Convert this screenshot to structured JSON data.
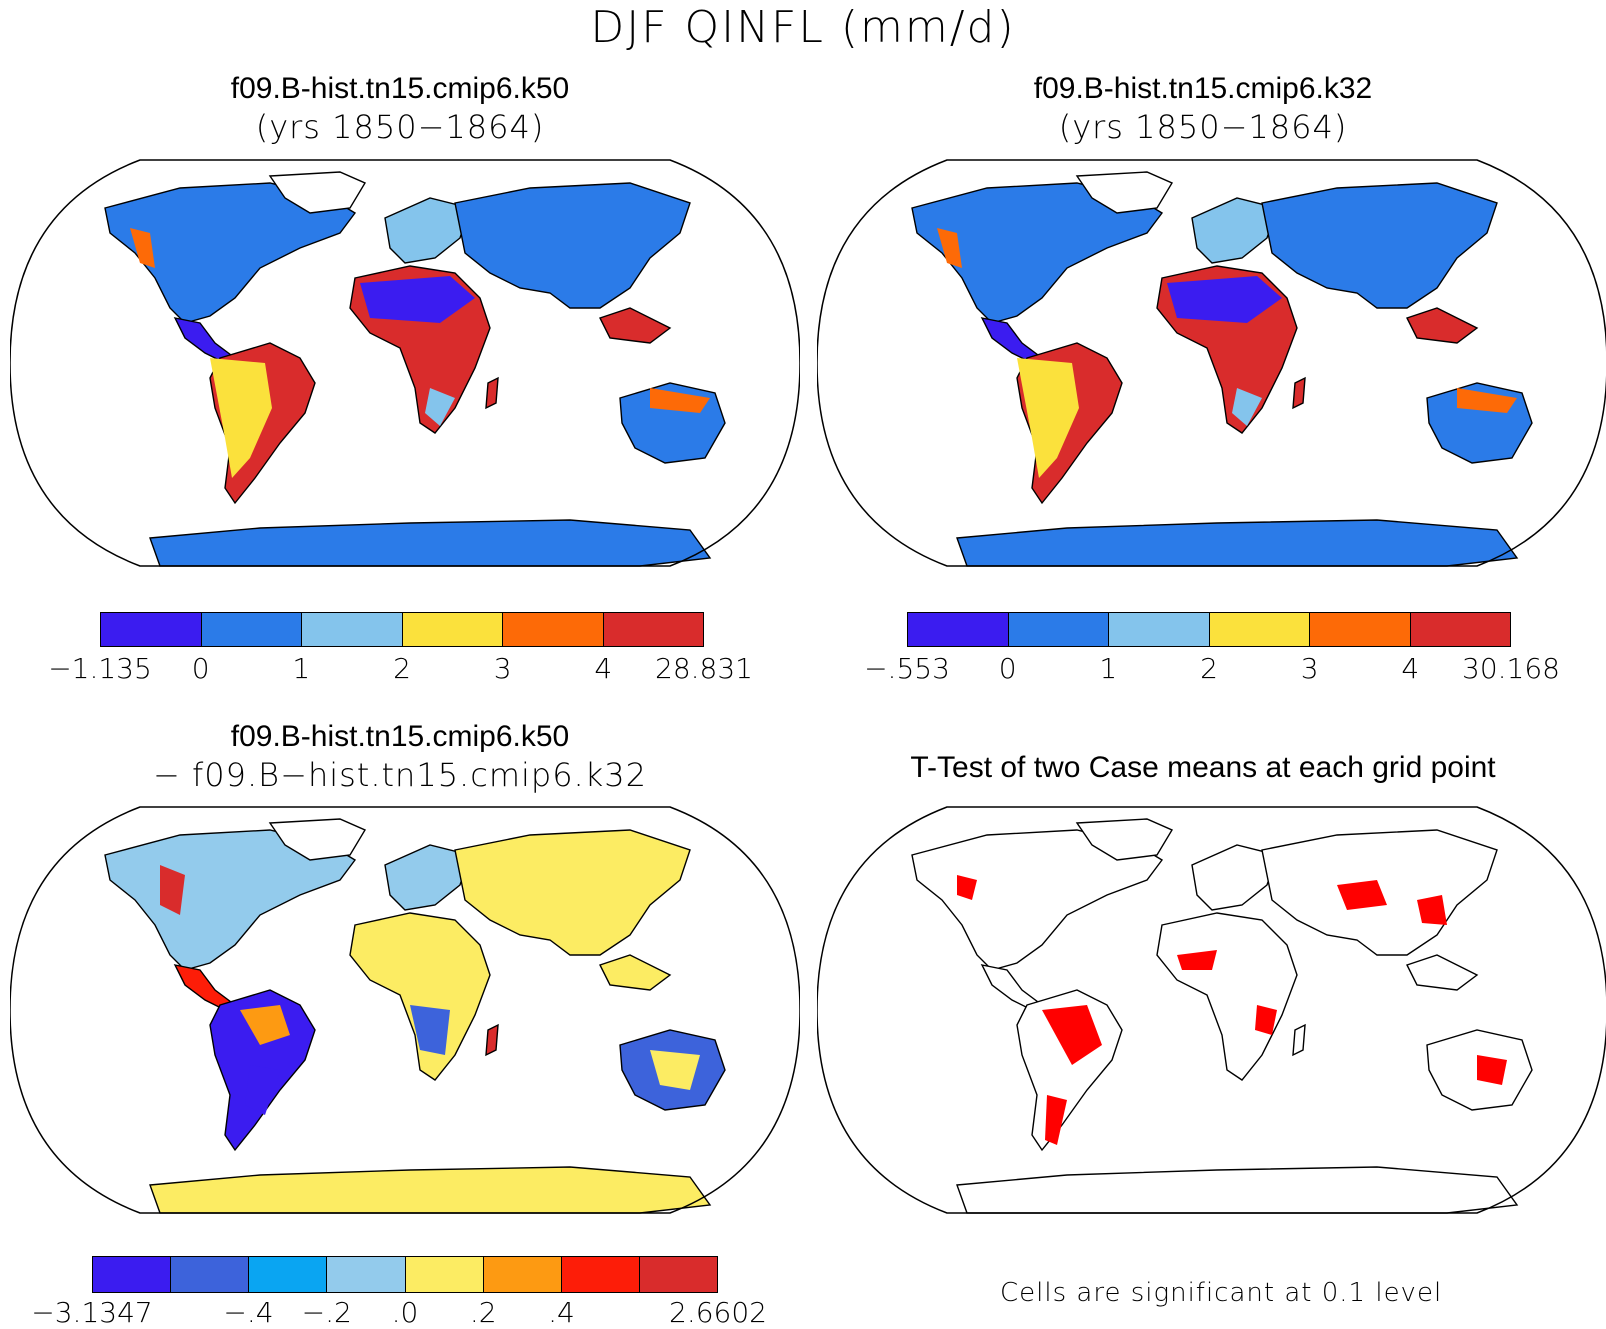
{
  "figure_title": "DJF QINFL (mm/d)",
  "panels": [
    {
      "title_line1": "f09.B-hist.tn15.cmip6.k50",
      "title_line2": "(yrs 1850−1864)"
    },
    {
      "title_line1": "f09.B-hist.tn15.cmip6.k32",
      "title_line2": "(yrs 1850−1864)"
    },
    {
      "title_line1": "f09.B-hist.tn15.cmip6.k50",
      "title_line2": "− f09.B−hist.tn15.cmip6.k32"
    },
    {
      "title_line1": "T-Test of two Case means at each grid point"
    }
  ],
  "colorbars": [
    {
      "colors": [
        "#3b1cf0",
        "#2b7be8",
        "#84c4ec",
        "#fbe13c",
        "#fd6a07",
        "#d92c2c"
      ],
      "labels": [
        "−1.135",
        "0",
        "1",
        "2",
        "3",
        "4",
        "28.831"
      ]
    },
    {
      "colors": [
        "#3b1cf0",
        "#2b7be8",
        "#84c4ec",
        "#fbe13c",
        "#fd6a07",
        "#d92c2c"
      ],
      "labels": [
        "−.553",
        "0",
        "1",
        "2",
        "3",
        "4",
        "30.168"
      ]
    },
    {
      "colors": [
        "#3b1cf0",
        "#3d63db",
        "#0aa5f2",
        "#93cbec",
        "#fcec63",
        "#fd9a12",
        "#fd1d08",
        "#d92c2c"
      ],
      "labels": [
        "−3.1347",
        "−.4",
        "−.2",
        ".0",
        ".2",
        ".4",
        "2.6602"
      ]
    }
  ],
  "significance_note": "Cells are significant at 0.1 level",
  "significance_color": "#ff0000"
}
